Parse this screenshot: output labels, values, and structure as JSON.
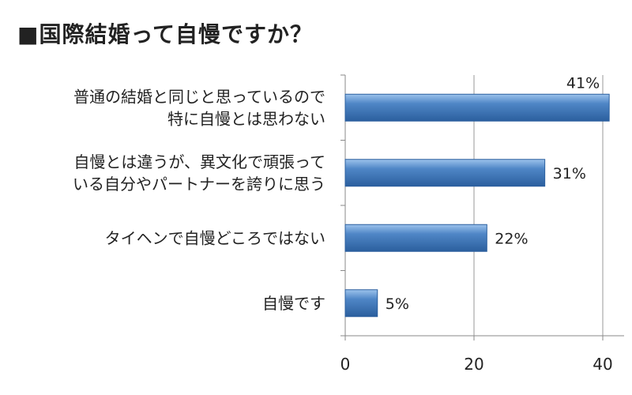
{
  "chart_data": {
    "type": "bar",
    "orientation": "horizontal",
    "title": "■国際結婚って自慢ですか？",
    "categories": [
      [
        "普通の結婚と同じと思っているので",
        "特に自慢とは思わない"
      ],
      [
        "自慢とは違うが、異文化で頑張って",
        "いる自分やパートナーを誇りに思う"
      ],
      [
        "タイヘンで自慢どころではない"
      ],
      [
        "自慢です"
      ]
    ],
    "values": [
      41,
      31,
      22,
      5
    ],
    "value_labels": [
      "41%",
      "31%",
      "22%",
      "5%"
    ],
    "xlim": [
      0,
      42
    ],
    "xticks": [
      0,
      20,
      40
    ],
    "xlabel": "",
    "ylabel": "",
    "grid": true,
    "legend": "none",
    "colors": {
      "bar": "#4f86c6",
      "bar_light": "#9cc3ec",
      "bar_dark": "#2b5f9e",
      "grid": "#999999",
      "axis": "#888888"
    }
  }
}
